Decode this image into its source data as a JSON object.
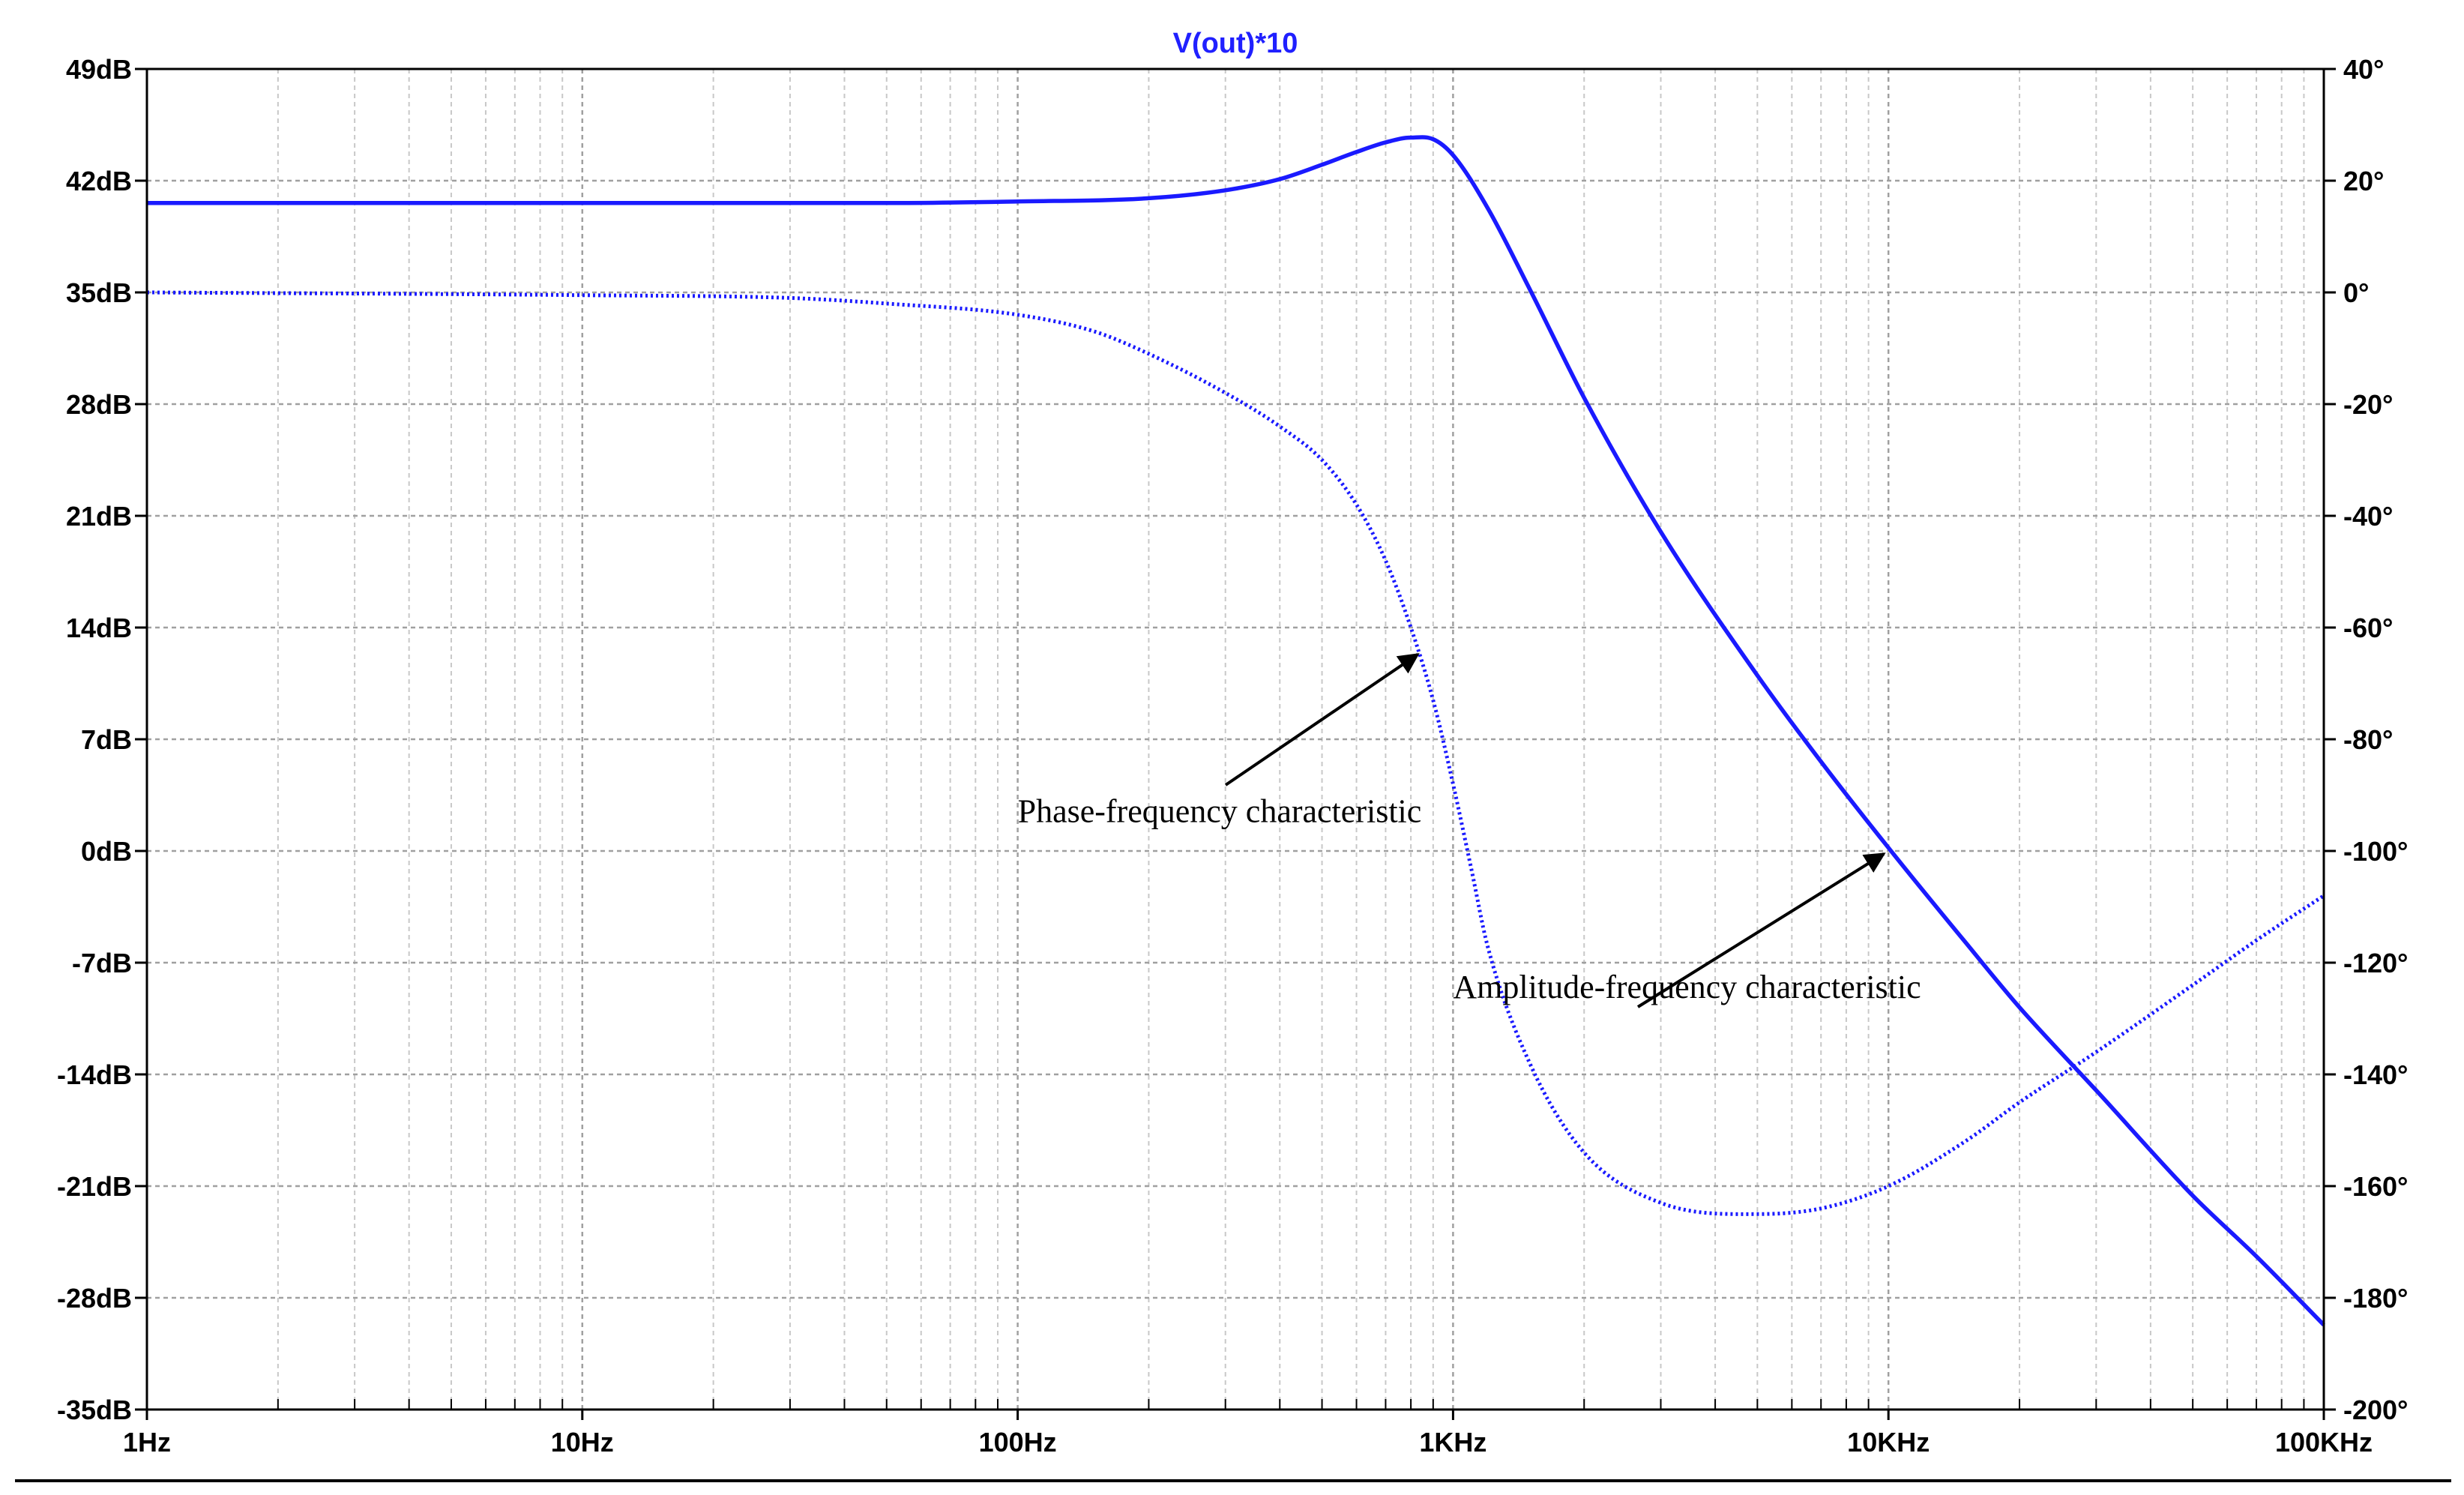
{
  "chart_data": {
    "type": "line",
    "title": "V(out)*10",
    "x_scale": "log",
    "xlim": [
      1,
      100000
    ],
    "x_ticks": [
      1,
      10,
      100,
      1000,
      10000,
      100000
    ],
    "x_tick_labels": [
      "1Hz",
      "10Hz",
      "100Hz",
      "1KHz",
      "10KHz",
      "100KHz"
    ],
    "ylim_left": [
      -35,
      49
    ],
    "y_ticks_left": [
      49,
      42,
      35,
      28,
      21,
      14,
      7,
      0,
      -7,
      -14,
      -21,
      -28,
      -35
    ],
    "y_tick_labels_left": [
      "49dB",
      "42dB",
      "35dB",
      "28dB",
      "21dB",
      "14dB",
      "7dB",
      "0dB",
      "-7dB",
      "-14dB",
      "-21dB",
      "-28dB",
      "-35dB"
    ],
    "ylim_right": [
      -200,
      40
    ],
    "y_ticks_right": [
      40,
      20,
      0,
      -20,
      -40,
      -60,
      -80,
      -100,
      -120,
      -140,
      -160,
      -180,
      -200
    ],
    "y_tick_labels_right": [
      "40°",
      "20°",
      "0°",
      "-20°",
      "-40°",
      "-60°",
      "-80°",
      "-100°",
      "-120°",
      "-140°",
      "-160°",
      "-180°",
      "-200°"
    ],
    "grid": true,
    "color": "#1a1aff",
    "series": [
      {
        "key": "amplitude",
        "axis": "left",
        "style": "solid",
        "x": [
          1,
          10,
          50,
          100,
          200,
          300,
          400,
          500,
          600,
          700,
          800,
          900,
          1000,
          1200,
          1500,
          2000,
          3000,
          5000,
          7000,
          10000,
          15000,
          20000,
          30000,
          50000,
          70000,
          100000
        ],
        "y": [
          40.6,
          40.6,
          40.6,
          40.7,
          40.9,
          41.4,
          42.1,
          43.0,
          43.8,
          44.4,
          44.7,
          44.6,
          43.6,
          40.3,
          35.2,
          28.4,
          20.0,
          11.0,
          5.6,
          0.2,
          -5.7,
          -9.8,
          -15.0,
          -21.6,
          -25.4,
          -29.7
        ]
      },
      {
        "key": "phase",
        "axis": "right",
        "style": "dotted",
        "x": [
          1,
          10,
          30,
          50,
          100,
          150,
          200,
          300,
          400,
          500,
          600,
          700,
          800,
          900,
          1000,
          1100,
          1200,
          1500,
          2000,
          3000,
          5000,
          7000,
          10000,
          15000,
          20000,
          30000,
          50000,
          70000,
          100000
        ],
        "y": [
          0,
          -0.5,
          -1,
          -2,
          -4,
          -7,
          -11,
          -18,
          -24,
          -30,
          -38,
          -48,
          -60,
          -73,
          -88,
          -103,
          -117,
          -138,
          -154,
          -163,
          -165,
          -164,
          -160,
          -152,
          -145,
          -136,
          -124,
          -116,
          -108
        ]
      }
    ],
    "annotations": [
      {
        "text": "Phase-frequency characteristic",
        "x": 100,
        "y": 1.8,
        "target": {
          "x": 850,
          "y": 12.7
        }
      },
      {
        "text": "Amplitude-frequency characteristic",
        "x": 1000,
        "y": -9.2,
        "target": {
          "x": 10000,
          "y": 0.2
        }
      }
    ]
  }
}
